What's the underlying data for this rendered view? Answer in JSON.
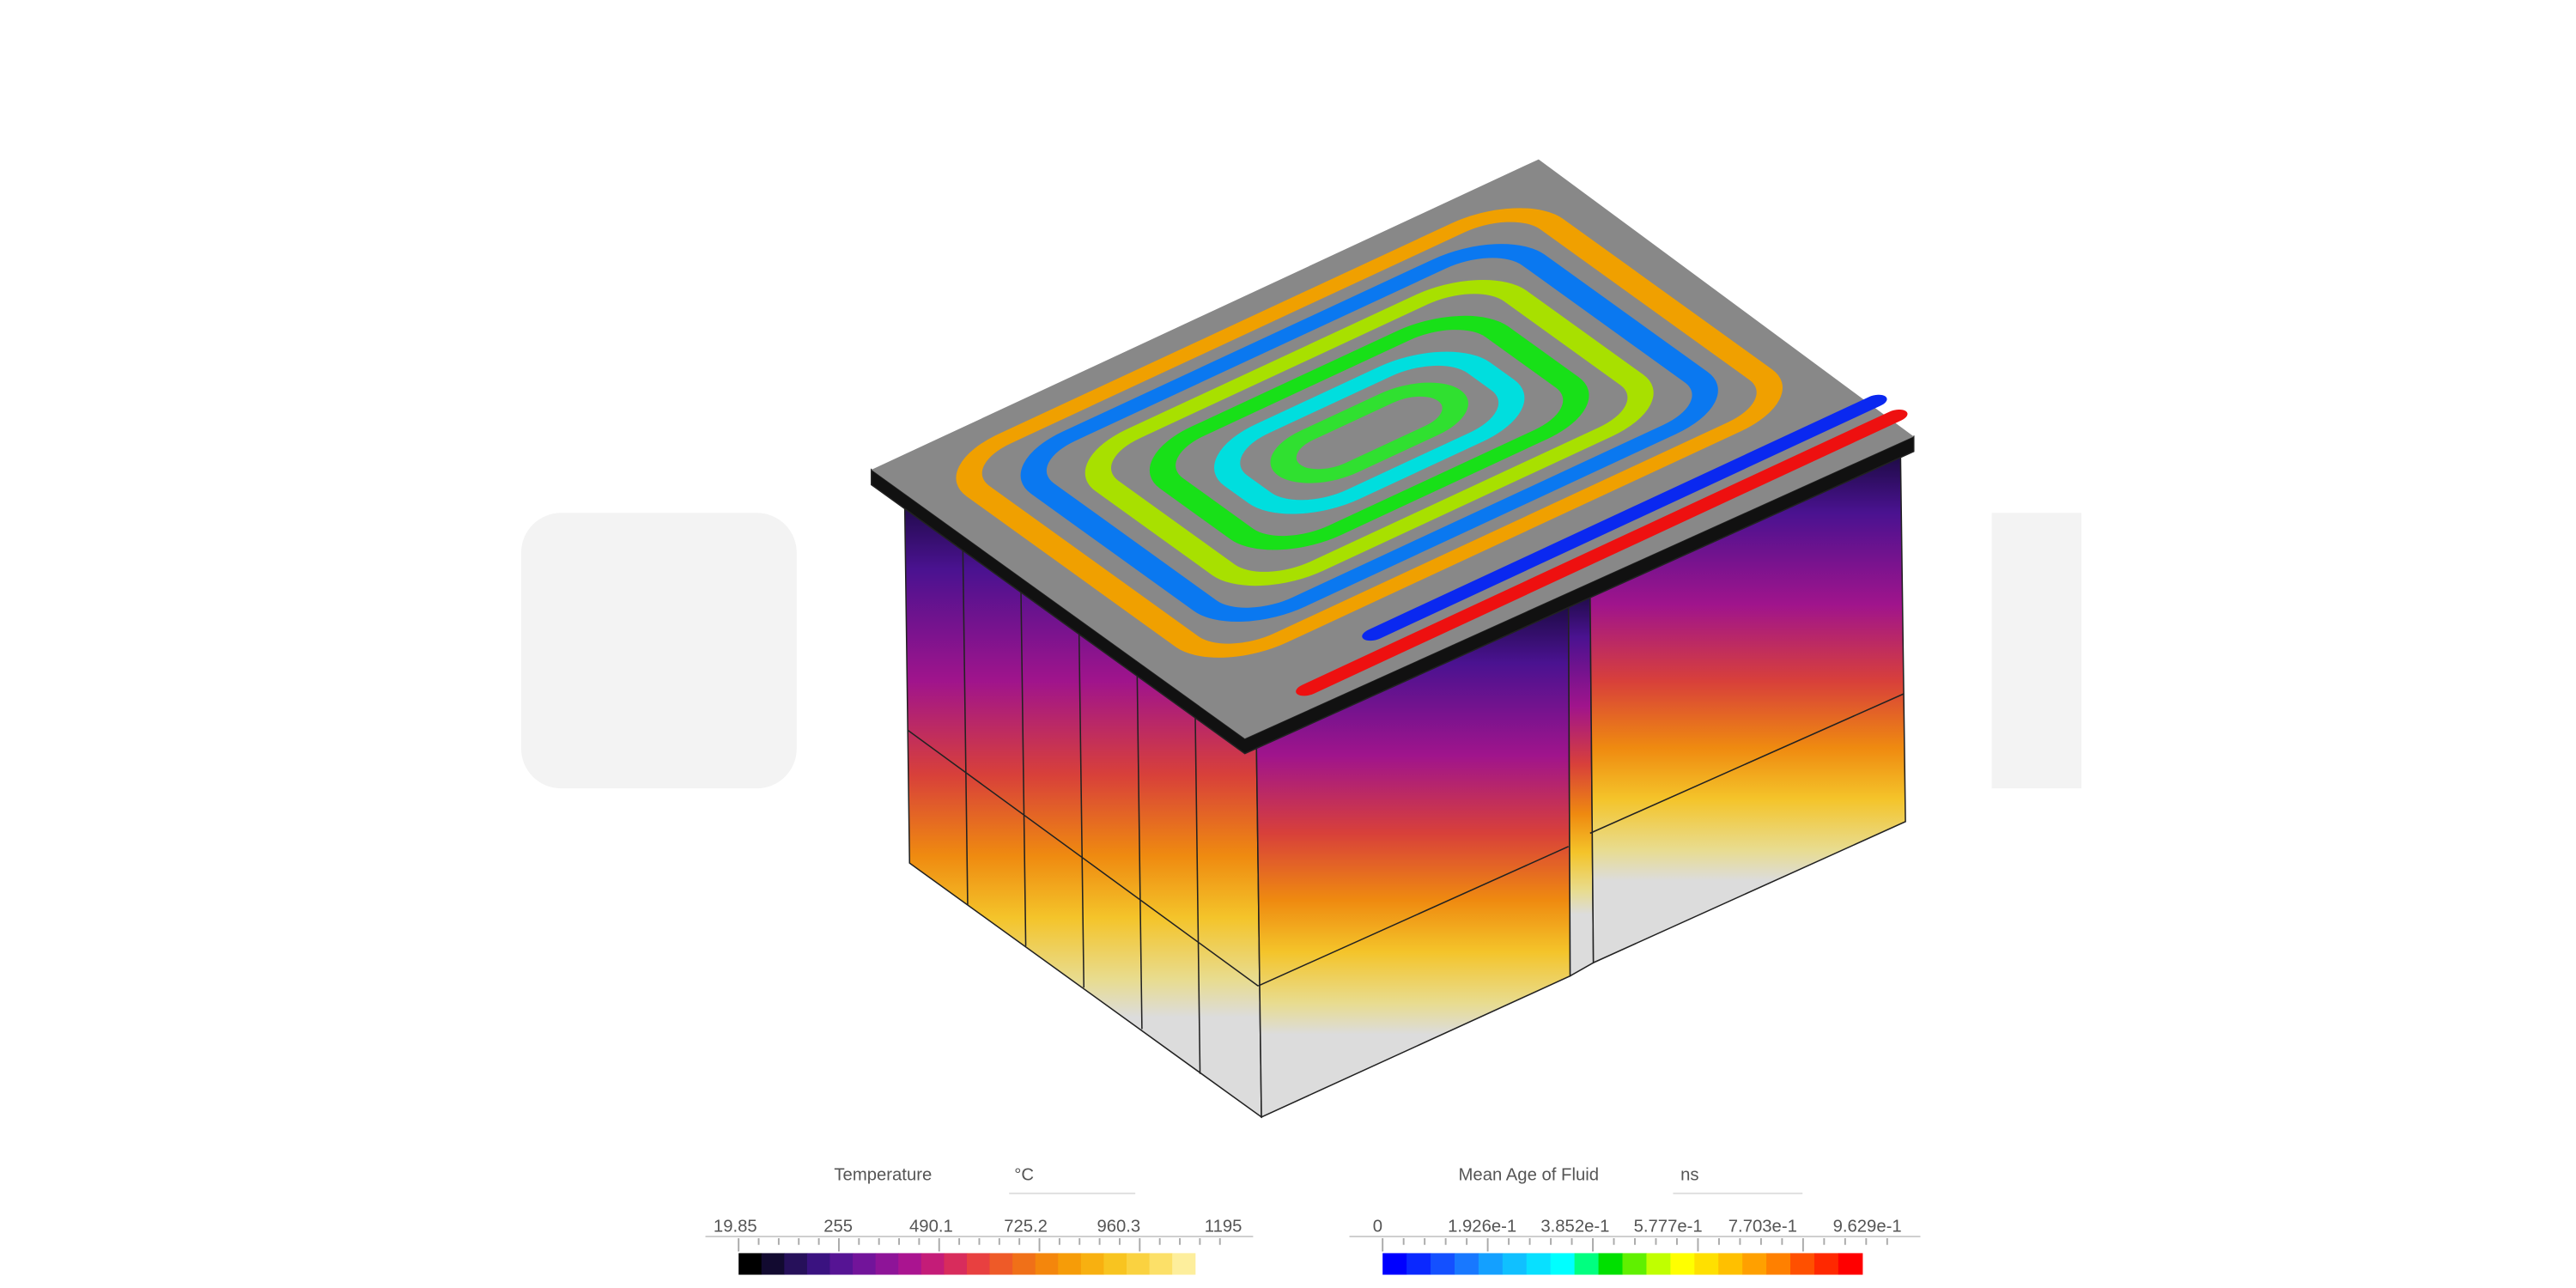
{
  "legends": [
    {
      "title": "Temperature",
      "unit": "°C",
      "ticks": [
        "19.85",
        "255",
        "490.1",
        "725.2",
        "960.3",
        "1195"
      ]
    },
    {
      "title": "Mean Age of Fluid",
      "unit": "ns",
      "ticks": [
        "0",
        "1.926e-1",
        "3.852e-1",
        "5.777e-1",
        "7.703e-1",
        "9.629e-1"
      ]
    }
  ]
}
